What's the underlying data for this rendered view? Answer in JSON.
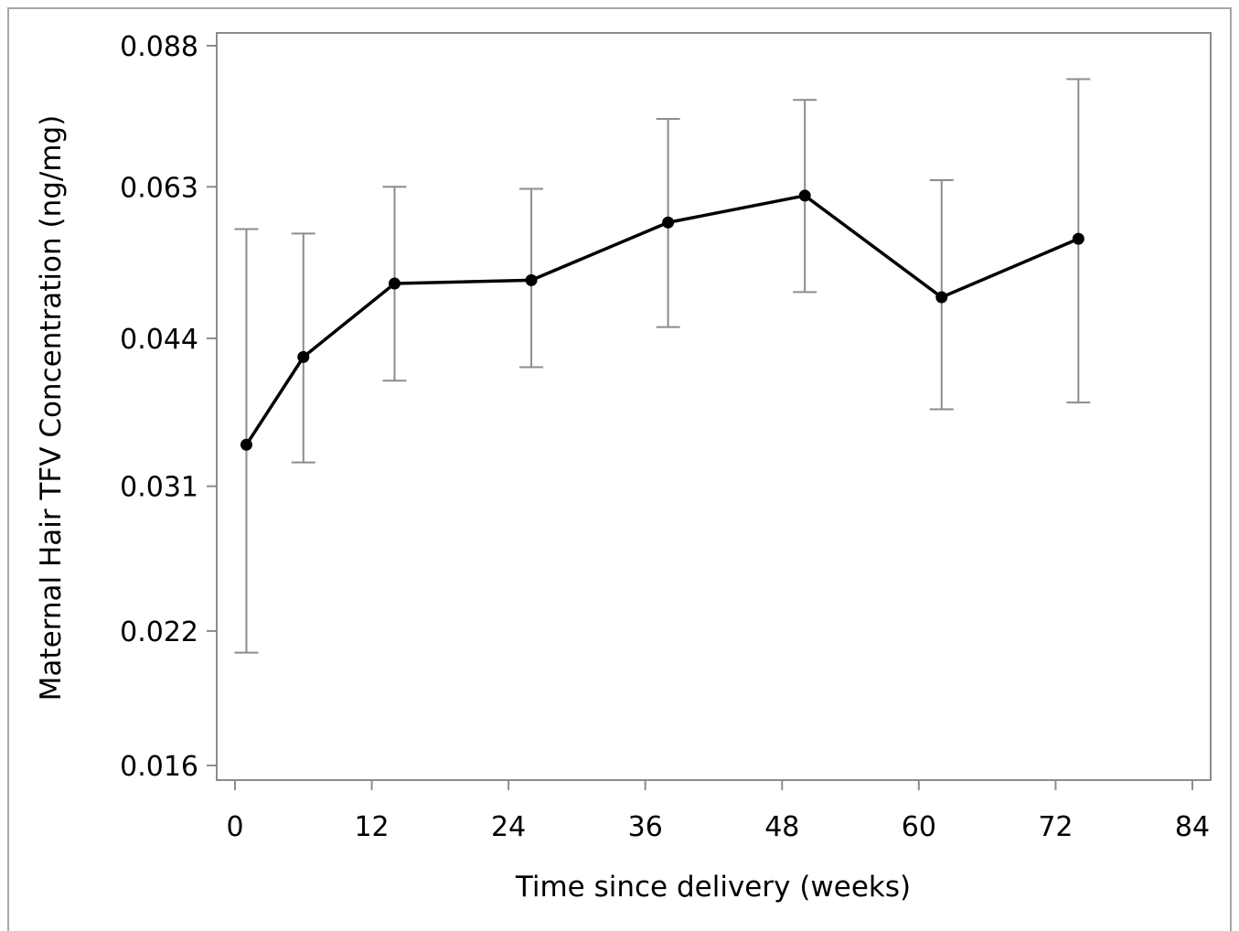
{
  "chart_data": {
    "type": "line",
    "title": "",
    "xlabel": "Time since delivery (weeks)",
    "ylabel": "Maternal Hair TFV Concentration (ng/mg)",
    "xlim": [
      -1,
      85
    ],
    "ylim": [
      0.015,
      0.09
    ],
    "y_scale": "log",
    "x_ticks": [
      0,
      12,
      24,
      36,
      48,
      60,
      72,
      84
    ],
    "x_tick_labels": [
      "0",
      "12",
      "24",
      "36",
      "48",
      "60",
      "72",
      "84"
    ],
    "y_ticks": [
      0.016,
      0.022,
      0.031,
      0.044,
      0.063,
      0.088
    ],
    "y_tick_labels": [
      "0.016",
      "0.022",
      "0.031",
      "0.044",
      "0.063",
      "0.088"
    ],
    "grid": false,
    "legend": "none",
    "series": [
      {
        "x": [
          1,
          6,
          14,
          26,
          38,
          50,
          62,
          74
        ],
        "y": [
          0.0342,
          0.0421,
          0.0501,
          0.0505,
          0.0579,
          0.0617,
          0.0485,
          0.0557
        ],
        "y_lower": [
          0.0209,
          0.0328,
          0.0398,
          0.0411,
          0.0452,
          0.0491,
          0.0372,
          0.0378
        ],
        "y_upper": [
          0.057,
          0.0564,
          0.063,
          0.0627,
          0.074,
          0.0774,
          0.064,
          0.0813
        ]
      }
    ],
    "colors": {
      "line": "#000000",
      "error_bar": "#8c8c8c",
      "axis": "#8c8c8c"
    }
  }
}
